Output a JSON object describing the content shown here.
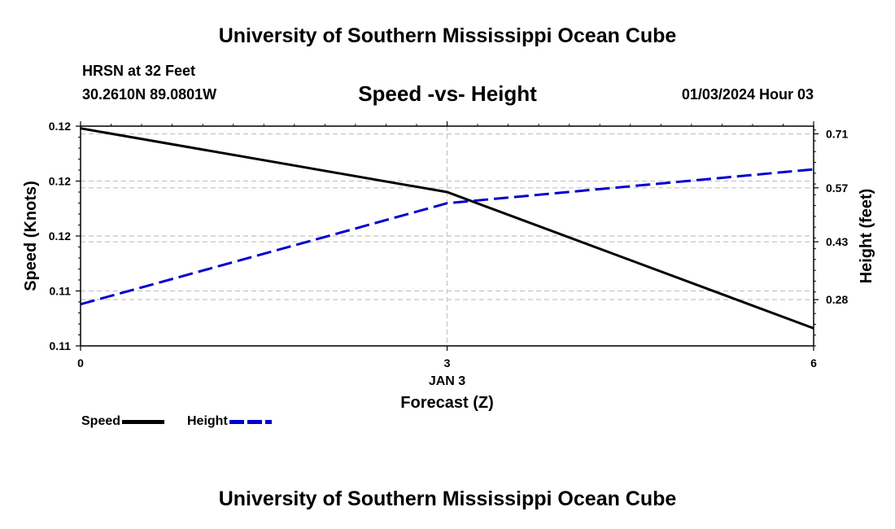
{
  "header": {
    "title": "University of Southern Mississippi Ocean Cube",
    "station": "HRSN at 32 Feet",
    "coordinates": "30.2610N  89.0801W",
    "chart_title": "Speed -vs- Height",
    "datetime": "01/03/2024 Hour 03"
  },
  "footer": {
    "title": "University of Southern Mississippi Ocean Cube"
  },
  "legend": {
    "speed_label": "Speed",
    "height_label": "Height",
    "speed_color": "#000000",
    "height_color": "#0000cc"
  },
  "chart_data": {
    "type": "line",
    "title": "Speed -vs- Height",
    "xlabel": "Forecast (Z)",
    "x_sublabel": "JAN 3",
    "ylabel": "Speed (Knots)",
    "y2label": "Height (feet)",
    "x": [
      0,
      3,
      6
    ],
    "x_ticks": [
      "0",
      "3",
      "6"
    ],
    "xlim": [
      0,
      6
    ],
    "y_ticks": [
      "0.12",
      "0.12",
      "0.12",
      "0.11",
      "0.11"
    ],
    "y2_ticks": [
      "0.71",
      "0.57",
      "0.43",
      "0.28"
    ],
    "y2_tick_values": [
      0.71,
      0.57,
      0.43,
      0.28
    ],
    "y2lim": [
      0.16,
      0.73
    ],
    "series": [
      {
        "name": "Speed",
        "axis": "left",
        "values": [
          0.1199,
          0.117,
          0.1108
        ],
        "ylim": [
          0.11,
          0.12
        ],
        "style": "solid",
        "color": "#000000"
      },
      {
        "name": "Height",
        "axis": "right",
        "values": [
          0.268,
          0.53,
          0.618
        ],
        "style": "dashed",
        "color": "#0000cc"
      }
    ],
    "grid": true
  }
}
